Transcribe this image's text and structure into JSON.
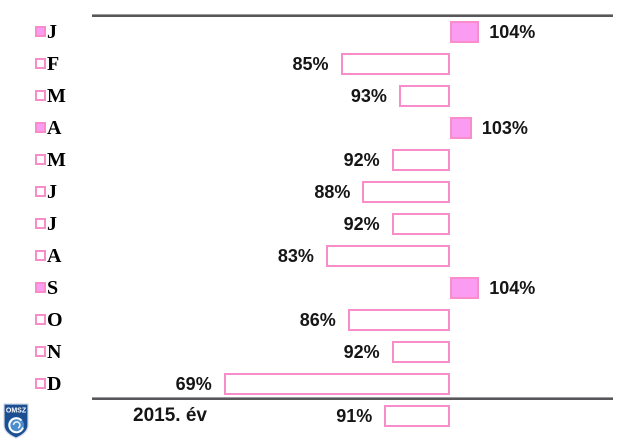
{
  "chart_data": {
    "type": "bar",
    "subtype": "horizontal-deviation-from-baseline",
    "title": "",
    "unit": "%",
    "baseline": 100,
    "categories": [
      "J",
      "F",
      "M",
      "A",
      "M",
      "J",
      "J",
      "A",
      "S",
      "O",
      "N",
      "D"
    ],
    "values": [
      104,
      85,
      93,
      103,
      92,
      88,
      92,
      83,
      104,
      86,
      92,
      69
    ],
    "value_labels": [
      "104%",
      "85%",
      "93%",
      "103%",
      "92%",
      "88%",
      "92%",
      "83%",
      "104%",
      "86%",
      "92%",
      "69%"
    ],
    "summary": {
      "category": "2015. év",
      "value": 91,
      "value_label": "91%"
    },
    "axis_range_percent": [
      69,
      104
    ],
    "grid": false,
    "legend_position": "none",
    "colors": {
      "bar_border": "#f98ccb",
      "bar_fill_above_100": "#fb9cf3",
      "bar_fill_below_100": "#ffffff",
      "axis_line": "#58585a",
      "label_text": "#151515",
      "logo_blue": "#1c4e92",
      "logo_light_blue": "#4d8ccc"
    }
  },
  "logo": {
    "text": "OMSZ"
  }
}
